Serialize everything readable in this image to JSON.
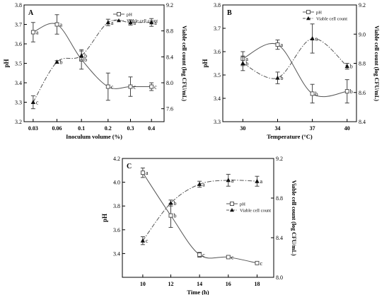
{
  "chart_data": [
    {
      "type": "line",
      "panel_label": "A",
      "xlabel": "Inoculum volume (%)",
      "ylabel": "pH",
      "y2label": "Viable cell count (log CFU/mL)",
      "categories": [
        "0.03",
        "0.06",
        "0.1",
        "0.2",
        "0.3",
        "0.4"
      ],
      "ylim": [
        3.2,
        3.8
      ],
      "y_ticks": [
        "3.2",
        "3.3",
        "3.4",
        "3.5",
        "3.6",
        "3.7",
        "3.8"
      ],
      "y2lim": [
        7.4,
        9.2
      ],
      "y2_ticks": [
        "7.6",
        "8.0",
        "8.4",
        "8.8",
        "9.2"
      ],
      "legend_position": "top-right",
      "series": [
        {
          "name": "pH",
          "axis": "left",
          "style": "solid",
          "marker": "open-square",
          "values": [
            3.66,
            3.7,
            3.52,
            3.38,
            3.38,
            3.38
          ],
          "errors": [
            0.05,
            0.05,
            0.05,
            0.07,
            0.05,
            0.02
          ],
          "letters": [
            "a",
            "a",
            "b",
            "c",
            "c",
            "c"
          ]
        },
        {
          "name": "Viable cell count",
          "axis": "right",
          "style": "dash-dot",
          "marker": "filled-triangle",
          "values": [
            7.7,
            8.32,
            8.42,
            8.93,
            8.93,
            8.93
          ],
          "errors": [
            0.1,
            0.02,
            0.07,
            0.05,
            0.04,
            0.06
          ],
          "letters": [
            "c",
            "b",
            "b",
            "a",
            "a",
            "a"
          ]
        }
      ]
    },
    {
      "type": "line",
      "panel_label": "B",
      "xlabel": "Temperature (°C)",
      "ylabel": "pH",
      "y2label": "Viable cell count (log CFU/mL)",
      "categories": [
        "30",
        "34",
        "37",
        "40"
      ],
      "ylim": [
        3.3,
        3.8
      ],
      "y_ticks": [
        "3.3",
        "3.4",
        "3.5",
        "3.6",
        "3.7",
        "3.8"
      ],
      "y2lim": [
        8.4,
        9.2
      ],
      "y2_ticks": [
        "8.4",
        "8.6",
        "8.8",
        "9.0",
        "9.2"
      ],
      "legend_position": "top-right",
      "series": [
        {
          "name": "pH",
          "axis": "left",
          "style": "solid",
          "marker": "open-square",
          "values": [
            3.57,
            3.63,
            3.42,
            3.43
          ],
          "errors": [
            0.03,
            0.02,
            0.04,
            0.05
          ],
          "letters": [
            "a",
            "a",
            "b",
            "b"
          ]
        },
        {
          "name": "Viable cell count",
          "axis": "right",
          "style": "dash-dot",
          "marker": "filled-triangle",
          "values": [
            8.8,
            8.7,
            8.97,
            8.78
          ],
          "errors": [
            0.05,
            0.04,
            0.1,
            0.02
          ],
          "letters": [
            "b",
            "b",
            "a",
            "b"
          ]
        }
      ]
    },
    {
      "type": "line",
      "panel_label": "C",
      "xlabel": "Time (h)",
      "ylabel": "pH",
      "y2label": "Viable cell count (log CFU/mL)",
      "categories": [
        "10",
        "12",
        "14",
        "16",
        "18"
      ],
      "ylim": [
        3.2,
        4.2
      ],
      "y_ticks": [
        "3.4",
        "3.6",
        "3.8",
        "4.0",
        "4.2"
      ],
      "y2lim": [
        8.0,
        9.2
      ],
      "y2_ticks": [
        "8.0",
        "8.4",
        "8.8",
        "9.2"
      ],
      "legend_position": "center-right",
      "series": [
        {
          "name": "pH",
          "axis": "left",
          "style": "solid",
          "marker": "open-square",
          "values": [
            4.08,
            3.72,
            3.39,
            3.37,
            3.32
          ],
          "errors": [
            0.04,
            0.1,
            0.02,
            0.01,
            0.01
          ],
          "letters": [
            "a",
            "b",
            "c",
            "c",
            "c"
          ]
        },
        {
          "name": "Viable cell count",
          "axis": "right",
          "style": "dash-dot",
          "marker": "filled-triangle",
          "values": [
            8.37,
            8.75,
            8.94,
            8.98,
            8.97
          ],
          "errors": [
            0.04,
            0.03,
            0.03,
            0.06,
            0.05
          ],
          "letters": [
            "c",
            "b",
            "a",
            "a",
            "a"
          ]
        }
      ]
    }
  ]
}
